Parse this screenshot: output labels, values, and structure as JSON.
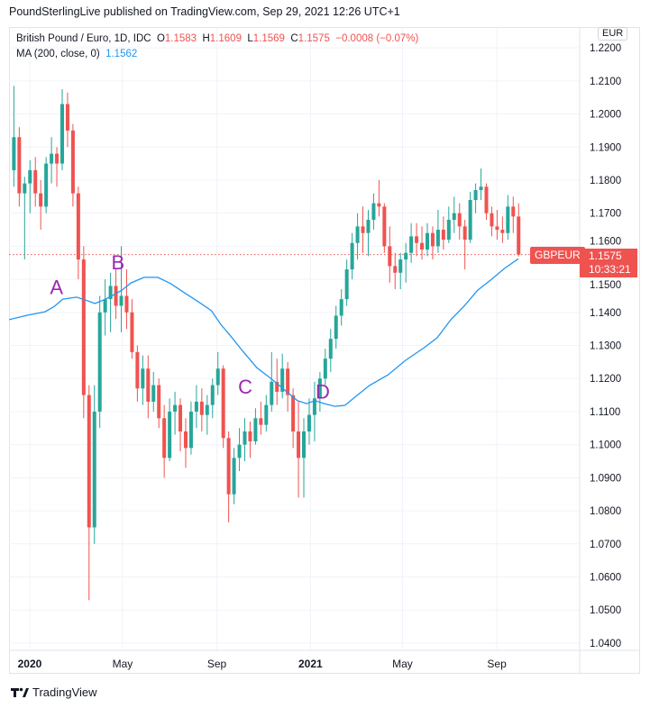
{
  "header": {
    "publisher_line": "PoundSterlingLive published on TradingView.com, Sep 29, 2021 12:26 UTC+1"
  },
  "legend": {
    "symbol": "British Pound / Euro, 1D, IDC",
    "o_label": "O",
    "o": "1.1583",
    "h_label": "H",
    "h": "1.1609",
    "l_label": "L",
    "l": "1.1569",
    "c_label": "C",
    "c": "1.1575",
    "change": "−0.0008 (−0.07%)",
    "ma_label": "MA (200, close, 0)",
    "ma_value": "1.1562"
  },
  "currency_button": "EUR",
  "price_badge": {
    "symbol": "GBPEUR",
    "price": "1.1575",
    "countdown": "10:33:21"
  },
  "footer": {
    "brand": "TradingView",
    "logo_text": "TV"
  },
  "colors": {
    "up": "#26a69a",
    "down": "#ef5350",
    "ma": "#2196f3",
    "annotation": "#9c27b0",
    "grid": "#f0f3fa"
  },
  "chart_data": {
    "type": "candlestick",
    "title": "British Pound / Euro, 1D, IDC",
    "x_range": [
      "2019-12-05",
      "2021-12-18"
    ],
    "ylim": [
      1.0378,
      1.2263
    ],
    "grid": true,
    "last_price": 1.1575,
    "y_ticks": [
      "1.2200",
      "1.2100",
      "1.2000",
      "1.1900",
      "1.1800",
      "1.1700",
      "1.1600",
      "1.1500",
      "1.1400",
      "1.1300",
      "1.1200",
      "1.1100",
      "1.1000",
      "1.0900",
      "1.0800",
      "1.0700",
      "1.0600",
      "1.0500",
      "1.0400"
    ],
    "x_ticks": [
      {
        "label": "2020",
        "date": "2020-01-01",
        "bold": true
      },
      {
        "label": "May",
        "date": "2020-05-01",
        "bold": false
      },
      {
        "label": "Sep",
        "date": "2020-09-01",
        "bold": false
      },
      {
        "label": "2021",
        "date": "2021-01-01",
        "bold": true
      },
      {
        "label": "May",
        "date": "2021-05-01",
        "bold": false
      },
      {
        "label": "Sep",
        "date": "2021-09-01",
        "bold": false
      }
    ],
    "candles_columns": [
      "date",
      "open",
      "high",
      "low",
      "close"
    ],
    "candles": [
      [
        "2019-12-09",
        1.183,
        1.2085,
        1.178,
        1.193
      ],
      [
        "2019-12-16",
        1.193,
        1.196,
        1.172,
        1.176
      ],
      [
        "2019-12-23",
        1.176,
        1.181,
        1.156,
        1.179
      ],
      [
        "2019-12-30",
        1.179,
        1.186,
        1.17,
        1.183
      ],
      [
        "2020-01-06",
        1.183,
        1.187,
        1.172,
        1.176
      ],
      [
        "2020-01-13",
        1.176,
        1.18,
        1.165,
        1.172
      ],
      [
        "2020-01-20",
        1.172,
        1.187,
        1.17,
        1.185
      ],
      [
        "2020-01-27",
        1.185,
        1.193,
        1.179,
        1.188
      ],
      [
        "2020-02-03",
        1.188,
        1.19,
        1.178,
        1.185
      ],
      [
        "2020-02-10",
        1.185,
        1.2075,
        1.183,
        1.203
      ],
      [
        "2020-02-17",
        1.203,
        1.2065,
        1.19,
        1.195
      ],
      [
        "2020-02-24",
        1.195,
        1.197,
        1.172,
        1.176
      ],
      [
        "2020-03-02",
        1.176,
        1.178,
        1.15,
        1.156
      ],
      [
        "2020-03-09",
        1.156,
        1.16,
        1.108,
        1.115
      ],
      [
        "2020-03-16",
        1.115,
        1.118,
        1.053,
        1.075
      ],
      [
        "2020-03-23",
        1.075,
        1.118,
        1.07,
        1.11
      ],
      [
        "2020-03-30",
        1.11,
        1.145,
        1.105,
        1.14
      ],
      [
        "2020-04-06",
        1.14,
        1.15,
        1.133,
        1.144
      ],
      [
        "2020-04-13",
        1.144,
        1.152,
        1.134,
        1.148
      ],
      [
        "2020-04-20",
        1.148,
        1.153,
        1.138,
        1.142
      ],
      [
        "2020-04-27",
        1.142,
        1.16,
        1.134,
        1.145
      ],
      [
        "2020-05-04",
        1.145,
        1.153,
        1.135,
        1.14
      ],
      [
        "2020-05-11",
        1.14,
        1.144,
        1.126,
        1.128
      ],
      [
        "2020-05-18",
        1.128,
        1.13,
        1.113,
        1.117
      ],
      [
        "2020-05-25",
        1.117,
        1.127,
        1.112,
        1.123
      ],
      [
        "2020-06-01",
        1.123,
        1.127,
        1.108,
        1.113
      ],
      [
        "2020-06-08",
        1.113,
        1.122,
        1.11,
        1.118
      ],
      [
        "2020-06-15",
        1.118,
        1.12,
        1.105,
        1.108
      ],
      [
        "2020-06-22",
        1.108,
        1.112,
        1.09,
        1.096
      ],
      [
        "2020-06-29",
        1.096,
        1.114,
        1.095,
        1.11
      ],
      [
        "2020-07-06",
        1.11,
        1.116,
        1.103,
        1.112
      ],
      [
        "2020-07-13",
        1.112,
        1.114,
        1.098,
        1.104
      ],
      [
        "2020-07-20",
        1.104,
        1.108,
        1.093,
        1.099
      ],
      [
        "2020-07-27",
        1.099,
        1.113,
        1.097,
        1.11
      ],
      [
        "2020-08-03",
        1.11,
        1.118,
        1.105,
        1.113
      ],
      [
        "2020-08-10",
        1.113,
        1.117,
        1.104,
        1.109
      ],
      [
        "2020-08-17",
        1.109,
        1.115,
        1.103,
        1.112
      ],
      [
        "2020-08-24",
        1.112,
        1.12,
        1.108,
        1.118
      ],
      [
        "2020-08-31",
        1.118,
        1.128,
        1.115,
        1.123
      ],
      [
        "2020-09-07",
        1.123,
        1.124,
        1.099,
        1.102
      ],
      [
        "2020-09-14",
        1.102,
        1.104,
        1.0765,
        1.085
      ],
      [
        "2020-09-21",
        1.085,
        1.099,
        1.082,
        1.096
      ],
      [
        "2020-09-28",
        1.096,
        1.105,
        1.092,
        1.1
      ],
      [
        "2020-10-05",
        1.1,
        1.108,
        1.095,
        1.104
      ],
      [
        "2020-10-12",
        1.104,
        1.107,
        1.096,
        1.101
      ],
      [
        "2020-10-19",
        1.101,
        1.111,
        1.1,
        1.108
      ],
      [
        "2020-10-26",
        1.108,
        1.113,
        1.103,
        1.106
      ],
      [
        "2020-11-02",
        1.106,
        1.115,
        1.104,
        1.112
      ],
      [
        "2020-11-09",
        1.112,
        1.128,
        1.11,
        1.119
      ],
      [
        "2020-11-16",
        1.119,
        1.126,
        1.112,
        1.116
      ],
      [
        "2020-11-23",
        1.116,
        1.1275,
        1.114,
        1.123
      ],
      [
        "2020-11-30",
        1.123,
        1.125,
        1.11,
        1.115
      ],
      [
        "2020-12-07",
        1.115,
        1.117,
        1.099,
        1.104
      ],
      [
        "2020-12-14",
        1.104,
        1.113,
        1.084,
        1.096
      ],
      [
        "2020-12-21",
        1.096,
        1.108,
        1.084,
        1.104
      ],
      [
        "2020-12-28",
        1.104,
        1.114,
        1.1,
        1.109
      ],
      [
        "2021-01-04",
        1.109,
        1.119,
        1.101,
        1.114
      ],
      [
        "2021-01-11",
        1.114,
        1.122,
        1.11,
        1.12
      ],
      [
        "2021-01-18",
        1.12,
        1.129,
        1.118,
        1.126
      ],
      [
        "2021-01-25",
        1.126,
        1.135,
        1.122,
        1.132
      ],
      [
        "2021-02-01",
        1.132,
        1.142,
        1.129,
        1.139
      ],
      [
        "2021-02-08",
        1.139,
        1.147,
        1.136,
        1.144
      ],
      [
        "2021-02-15",
        1.144,
        1.156,
        1.142,
        1.153
      ],
      [
        "2021-02-22",
        1.153,
        1.164,
        1.15,
        1.161
      ],
      [
        "2021-03-01",
        1.161,
        1.17,
        1.156,
        1.166
      ],
      [
        "2021-03-08",
        1.166,
        1.172,
        1.158,
        1.164
      ],
      [
        "2021-03-15",
        1.164,
        1.171,
        1.157,
        1.168
      ],
      [
        "2021-03-22",
        1.168,
        1.176,
        1.165,
        1.173
      ],
      [
        "2021-03-29",
        1.173,
        1.18,
        1.169,
        1.172
      ],
      [
        "2021-04-05",
        1.172,
        1.173,
        1.158,
        1.16
      ],
      [
        "2021-04-12",
        1.16,
        1.166,
        1.149,
        1.154
      ],
      [
        "2021-04-19",
        1.154,
        1.158,
        1.147,
        1.152
      ],
      [
        "2021-04-26",
        1.152,
        1.158,
        1.147,
        1.156
      ],
      [
        "2021-05-03",
        1.156,
        1.161,
        1.149,
        1.158
      ],
      [
        "2021-05-10",
        1.158,
        1.167,
        1.155,
        1.163
      ],
      [
        "2021-05-17",
        1.163,
        1.167,
        1.157,
        1.161
      ],
      [
        "2021-05-24",
        1.161,
        1.166,
        1.156,
        1.159
      ],
      [
        "2021-05-31",
        1.159,
        1.167,
        1.157,
        1.164
      ],
      [
        "2021-06-07",
        1.164,
        1.166,
        1.156,
        1.16
      ],
      [
        "2021-06-14",
        1.16,
        1.171,
        1.158,
        1.165
      ],
      [
        "2021-06-21",
        1.165,
        1.169,
        1.159,
        1.162
      ],
      [
        "2021-06-28",
        1.162,
        1.172,
        1.161,
        1.168
      ],
      [
        "2021-07-05",
        1.168,
        1.175,
        1.164,
        1.17
      ],
      [
        "2021-07-12",
        1.17,
        1.173,
        1.162,
        1.166
      ],
      [
        "2021-07-19",
        1.166,
        1.168,
        1.153,
        1.162
      ],
      [
        "2021-07-26",
        1.162,
        1.1765,
        1.161,
        1.174
      ],
      [
        "2021-08-02",
        1.174,
        1.179,
        1.17,
        1.177
      ],
      [
        "2021-08-09",
        1.177,
        1.1835,
        1.174,
        1.178
      ],
      [
        "2021-08-16",
        1.178,
        1.179,
        1.168,
        1.17
      ],
      [
        "2021-08-23",
        1.17,
        1.172,
        1.163,
        1.166
      ],
      [
        "2021-08-30",
        1.166,
        1.171,
        1.162,
        1.165
      ],
      [
        "2021-09-06",
        1.165,
        1.169,
        1.161,
        1.164
      ],
      [
        "2021-09-13",
        1.164,
        1.1755,
        1.162,
        1.172
      ],
      [
        "2021-09-20",
        1.172,
        1.175,
        1.164,
        1.169
      ],
      [
        "2021-09-27",
        1.169,
        1.173,
        1.1569,
        1.1575
      ]
    ],
    "ma_series": {
      "name": "MA (200, close, 0)",
      "points": [
        [
          "2019-12-05",
          1.1378
        ],
        [
          "2019-12-28",
          1.1391
        ],
        [
          "2020-01-21",
          1.1402
        ],
        [
          "2020-02-02",
          1.1418
        ],
        [
          "2020-02-13",
          1.144
        ],
        [
          "2020-03-02",
          1.1446
        ],
        [
          "2020-03-14",
          1.1437
        ],
        [
          "2020-03-26",
          1.1427
        ],
        [
          "2020-04-06",
          1.1437
        ],
        [
          "2020-04-18",
          1.1451
        ],
        [
          "2020-04-30",
          1.1467
        ],
        [
          "2020-05-12",
          1.1489
        ],
        [
          "2020-05-29",
          1.1506
        ],
        [
          "2020-06-16",
          1.1506
        ],
        [
          "2020-07-03",
          1.1487
        ],
        [
          "2020-07-21",
          1.1459
        ],
        [
          "2020-08-08",
          1.1432
        ],
        [
          "2020-08-25",
          1.1405
        ],
        [
          "2020-09-06",
          1.1364
        ],
        [
          "2020-09-18",
          1.1331
        ],
        [
          "2020-10-05",
          1.1282
        ],
        [
          "2020-10-23",
          1.1233
        ],
        [
          "2020-11-10",
          1.1201
        ],
        [
          "2020-11-27",
          1.1168
        ],
        [
          "2020-12-15",
          1.1133
        ],
        [
          "2020-12-27",
          1.1124
        ],
        [
          "2021-01-07",
          1.1133
        ],
        [
          "2021-01-19",
          1.1124
        ],
        [
          "2021-02-02",
          1.1116
        ],
        [
          "2021-02-15",
          1.1119
        ],
        [
          "2021-03-01",
          1.1146
        ],
        [
          "2021-03-19",
          1.1179
        ],
        [
          "2021-04-12",
          1.1211
        ],
        [
          "2021-05-05",
          1.1255
        ],
        [
          "2021-05-29",
          1.1293
        ],
        [
          "2021-06-15",
          1.1323
        ],
        [
          "2021-07-03",
          1.1378
        ],
        [
          "2021-07-20",
          1.1418
        ],
        [
          "2021-08-07",
          1.1467
        ],
        [
          "2021-08-25",
          1.15
        ],
        [
          "2021-09-11",
          1.1533
        ],
        [
          "2021-09-29",
          1.1562
        ]
      ]
    },
    "annotations": [
      {
        "text": "A",
        "date": "2020-02-05",
        "price": 1.1455
      },
      {
        "text": "B",
        "date": "2020-04-25",
        "price": 1.153
      },
      {
        "text": "C",
        "date": "2020-10-08",
        "price": 1.1155
      },
      {
        "text": "D",
        "date": "2021-01-17",
        "price": 1.114
      }
    ]
  }
}
